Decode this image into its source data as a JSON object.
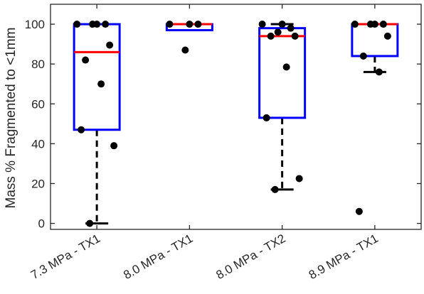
{
  "chart_data": {
    "type": "box",
    "title": "",
    "xlabel": "",
    "ylabel": "Mass % Fragmented to <1mm",
    "ylim": [
      -3,
      110
    ],
    "yticks": [
      0,
      20,
      40,
      60,
      80,
      100
    ],
    "ytick_labels": [
      "0",
      "20",
      "40",
      "60",
      "80",
      "100"
    ],
    "grid": false,
    "legend": "none",
    "categories": [
      "7.3 MPa - TX1",
      "8.0 MPa - TX1",
      "8.0 MPa - TX2",
      "8.9 MPa - TX1"
    ],
    "boxes": [
      {
        "category": "7.3 MPa - TX1",
        "q1": 47,
        "median": 86,
        "q3": 100,
        "whisker_low": 0,
        "whisker_high": 100
      },
      {
        "category": "8.0 MPa - TX1",
        "q1": 97,
        "median": 100,
        "q3": 100,
        "whisker_low": 97,
        "whisker_high": 100
      },
      {
        "category": "8.0 MPa - TX2",
        "q1": 53,
        "median": 94,
        "q3": 98,
        "whisker_low": 17,
        "whisker_high": 100
      },
      {
        "category": "8.9 MPa - TX1",
        "q1": 84,
        "median": 100,
        "q3": 100,
        "whisker_low": 76,
        "whisker_high": 100
      }
    ],
    "points": [
      {
        "category": "7.3 MPa - TX1",
        "values": [
          100,
          100,
          100,
          100,
          89.5,
          82,
          70,
          47,
          39,
          0
        ]
      },
      {
        "category": "8.0 MPa - TX1",
        "values": [
          100,
          100,
          100,
          87
        ]
      },
      {
        "category": "8.0 MPa - TX2",
        "values": [
          100,
          100,
          98,
          96,
          94,
          94,
          78.5,
          53,
          22.5,
          17
        ]
      },
      {
        "category": "8.9 MPa - TX1",
        "values": [
          100,
          100,
          100,
          100,
          94,
          84,
          76,
          6
        ]
      }
    ],
    "colors": {
      "box": "#0000ff",
      "median": "#ff0000",
      "whisker": "#000000",
      "points": "#000000",
      "axis": "#262626"
    }
  }
}
